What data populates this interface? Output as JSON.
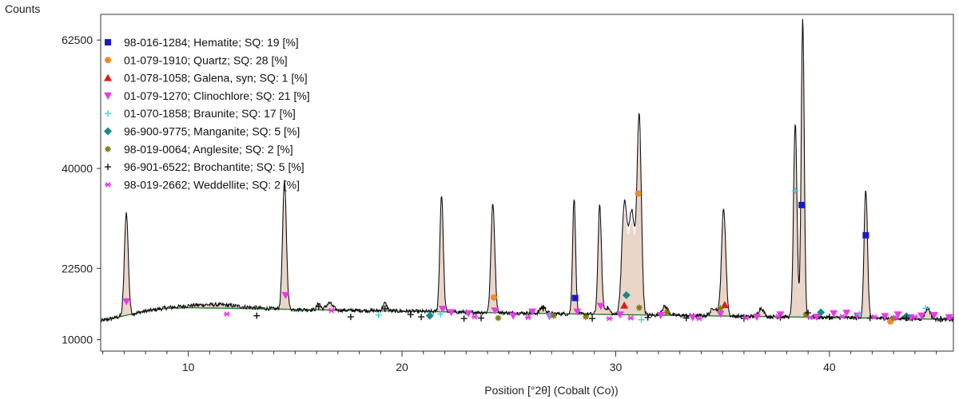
{
  "chart_data": {
    "type": "line",
    "title": "",
    "ylabel": "Counts",
    "xlabel": "Position [°2θ] (Cobalt (Co))",
    "xlim": [
      5.9,
      45.8
    ],
    "ylim": [
      8000,
      67000
    ],
    "xticks": [
      10,
      20,
      30,
      40
    ],
    "yticks": [
      10000,
      22500,
      40000,
      62500
    ],
    "xtick_labels": [
      "10",
      "20",
      "30",
      "40"
    ],
    "ytick_labels": [
      "10000",
      "22500",
      "40000",
      "62500"
    ],
    "grid": false,
    "legend_position": "top-left",
    "colors": {
      "pattern": "#111111",
      "background_fit": "#2e7d32",
      "fit_fill": "#d8b49c",
      "axes": "#333333"
    },
    "legend": [
      {
        "label": "98-016-1284; Hematite; SQ: 19 [%]",
        "color": "#1a1acc",
        "marker": "square"
      },
      {
        "label": "01-079-1910; Quartz; SQ: 28 [%]",
        "color": "#f08a24",
        "marker": "circle"
      },
      {
        "label": "01-078-1058; Galena, syn; SQ: 1 [%]",
        "color": "#dd1c1c",
        "marker": "triangle-up"
      },
      {
        "label": "01-079-1270; Clinochlore; SQ: 21 [%]",
        "color": "#e83ce8",
        "marker": "triangle-down"
      },
      {
        "label": "01-070-1858; Braunite; SQ: 17 [%]",
        "color": "#38d6d6",
        "marker": "plus"
      },
      {
        "label": "96-900-9775; Manganite; SQ: 5 [%]",
        "color": "#138a8a",
        "marker": "diamond"
      },
      {
        "label": "98-019-0064; Anglesite; SQ: 2 [%]",
        "color": "#7a7a10",
        "marker": "asterisk"
      },
      {
        "label": "96-901-6522; Brochantite; SQ: 5 [%]",
        "color": "#111111",
        "marker": "plus"
      },
      {
        "label": "98-019-2662; Weddellite; SQ: 2 [%]",
        "color": "#e83ce8",
        "marker": "star"
      }
    ],
    "background": [
      [
        5.9,
        13300
      ],
      [
        7,
        14200
      ],
      [
        8,
        15000
      ],
      [
        9,
        15500
      ],
      [
        10,
        15600
      ],
      [
        12,
        15500
      ],
      [
        15,
        15300
      ],
      [
        20,
        15000
      ],
      [
        25,
        14700
      ],
      [
        30,
        14400
      ],
      [
        35,
        14150
      ],
      [
        40,
        13900
      ],
      [
        45,
        13600
      ],
      [
        45.8,
        13500
      ]
    ],
    "peaks": [
      {
        "x": 7.1,
        "y": 18000,
        "w": 0.09
      },
      {
        "x": 11.2,
        "y": 600,
        "w": 1.2
      },
      {
        "x": 14.5,
        "y": 22300,
        "w": 0.09
      },
      {
        "x": 16.1,
        "y": 1200,
        "w": 0.08
      },
      {
        "x": 16.6,
        "y": 1200,
        "w": 0.15
      },
      {
        "x": 19.2,
        "y": 1300,
        "w": 0.1
      },
      {
        "x": 21.85,
        "y": 20500,
        "w": 0.08
      },
      {
        "x": 24.25,
        "y": 19000,
        "w": 0.09
      },
      {
        "x": 26.6,
        "y": 1200,
        "w": 0.12
      },
      {
        "x": 28.05,
        "y": 20300,
        "w": 0.07
      },
      {
        "x": 29.25,
        "y": 19000,
        "w": 0.08
      },
      {
        "x": 29.6,
        "y": 1200,
        "w": 0.12
      },
      {
        "x": 30.4,
        "y": 18600,
        "w": 0.12
      },
      {
        "x": 30.75,
        "y": 18000,
        "w": 0.15
      },
      {
        "x": 31.1,
        "y": 34100,
        "w": 0.1
      },
      {
        "x": 32.3,
        "y": 1500,
        "w": 0.15
      },
      {
        "x": 34.6,
        "y": 1400,
        "w": 0.15
      },
      {
        "x": 35.05,
        "y": 18800,
        "w": 0.1
      },
      {
        "x": 36.8,
        "y": 1500,
        "w": 0.12
      },
      {
        "x": 38.4,
        "y": 34000,
        "w": 0.08
      },
      {
        "x": 38.75,
        "y": 52500,
        "w": 0.07
      },
      {
        "x": 41.7,
        "y": 22500,
        "w": 0.08
      },
      {
        "x": 44.6,
        "y": 1900,
        "w": 0.12
      }
    ],
    "phase_markers": [
      {
        "phase": "Hematite",
        "points": [
          [
            28.1,
            17300
          ],
          [
            38.7,
            33600
          ],
          [
            41.7,
            28300
          ]
        ]
      },
      {
        "phase": "Quartz",
        "points": [
          [
            24.3,
            17400
          ],
          [
            31.05,
            35600
          ],
          [
            42.85,
            13200
          ]
        ]
      },
      {
        "phase": "Galena, syn",
        "points": [
          [
            30.4,
            16000
          ],
          [
            35.1,
            16100
          ]
        ]
      },
      {
        "phase": "Clinochlore",
        "points": [
          [
            7.1,
            16700
          ],
          [
            14.55,
            17800
          ],
          [
            21.9,
            15400
          ],
          [
            22.3,
            14800
          ],
          [
            23.1,
            14600
          ],
          [
            24.35,
            15100
          ],
          [
            25.2,
            14200
          ],
          [
            26.1,
            14900
          ],
          [
            26.9,
            14100
          ],
          [
            28.2,
            14900
          ],
          [
            29.3,
            15900
          ],
          [
            30.2,
            14400
          ],
          [
            32.1,
            14300
          ],
          [
            33.6,
            13900
          ],
          [
            34.9,
            14500
          ],
          [
            36.6,
            14000
          ],
          [
            37.7,
            14400
          ],
          [
            39.4,
            14000
          ],
          [
            40.2,
            14600
          ],
          [
            40.8,
            14700
          ],
          [
            41.3,
            14200
          ],
          [
            42.6,
            14100
          ],
          [
            43.2,
            14400
          ],
          [
            43.8,
            13900
          ],
          [
            44.3,
            14200
          ],
          [
            44.9,
            14300
          ],
          [
            45.6,
            13900
          ]
        ]
      },
      {
        "phase": "Braunite",
        "points": [
          [
            18.9,
            14300
          ],
          [
            21.8,
            14500
          ],
          [
            26.9,
            14300
          ],
          [
            31.2,
            13500
          ],
          [
            38.4,
            36100
          ],
          [
            41.4,
            14500
          ],
          [
            44.5,
            15500
          ]
        ]
      },
      {
        "phase": "Manganite",
        "points": [
          [
            21.3,
            14200
          ],
          [
            30.5,
            17800
          ],
          [
            39.6,
            14800
          ],
          [
            43.6,
            14100
          ]
        ]
      },
      {
        "phase": "Anglesite",
        "points": [
          [
            24.5,
            13800
          ],
          [
            27.1,
            14200
          ],
          [
            28.6,
            14000
          ],
          [
            31.1,
            15600
          ],
          [
            32.4,
            14800
          ],
          [
            34.9,
            15500
          ],
          [
            38.9,
            14400
          ],
          [
            43.0,
            13800
          ]
        ]
      },
      {
        "phase": "Brochantite",
        "points": [
          [
            13.2,
            14200
          ],
          [
            16.1,
            15800
          ],
          [
            17.6,
            14000
          ],
          [
            19.2,
            15400
          ],
          [
            20.4,
            14400
          ],
          [
            20.9,
            14000
          ],
          [
            22.9,
            13700
          ],
          [
            23.7,
            13800
          ],
          [
            26.6,
            15500
          ],
          [
            28.9,
            13700
          ],
          [
            31.5,
            13900
          ],
          [
            33.3,
            13800
          ],
          [
            36.0,
            13700
          ],
          [
            37.7,
            13900
          ],
          [
            39.0,
            14700
          ],
          [
            40.0,
            14000
          ],
          [
            41.9,
            13800
          ],
          [
            43.6,
            13800
          ],
          [
            45.2,
            13600
          ]
        ]
      },
      {
        "phase": "Weddellite",
        "points": [
          [
            11.8,
            14500
          ],
          [
            16.7,
            15100
          ],
          [
            23.4,
            14000
          ],
          [
            25.9,
            13900
          ],
          [
            29.7,
            13700
          ],
          [
            30.7,
            13800
          ],
          [
            33.9,
            13700
          ],
          [
            36.1,
            13800
          ],
          [
            37.6,
            14100
          ],
          [
            39.1,
            13900
          ],
          [
            40.6,
            14100
          ],
          [
            42.1,
            14000
          ],
          [
            43.1,
            13800
          ],
          [
            44.0,
            14000
          ],
          [
            45.6,
            13900
          ]
        ]
      }
    ]
  }
}
